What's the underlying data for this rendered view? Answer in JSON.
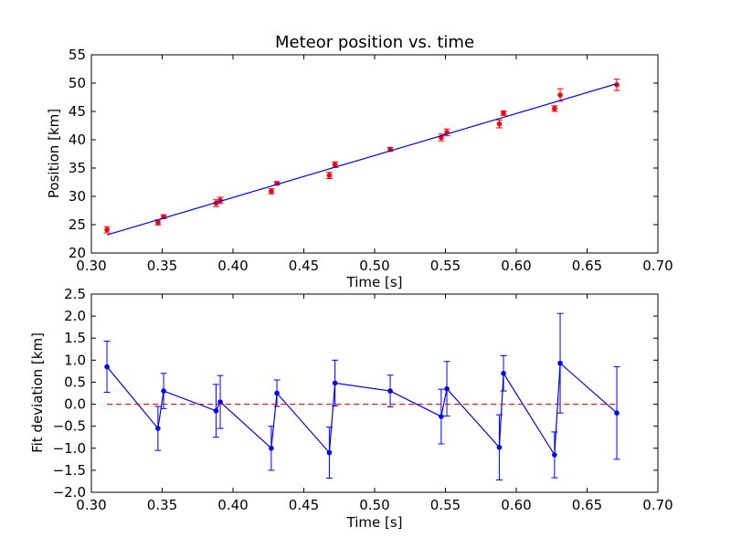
{
  "chart_data": [
    {
      "type": "scatter",
      "title": "Meteor position vs. time",
      "xlabel": "Time [s]",
      "ylabel": "Position [km]",
      "xlim": [
        0.3,
        0.7
      ],
      "ylim": [
        20,
        55
      ],
      "xticks": [
        "0.30",
        "0.35",
        "0.40",
        "0.45",
        "0.50",
        "0.55",
        "0.60",
        "0.65",
        "0.70"
      ],
      "yticks": [
        "20",
        "25",
        "30",
        "35",
        "40",
        "45",
        "50",
        "55"
      ],
      "grid": false,
      "series": [
        {
          "kind": "points_with_errorbars",
          "color": "#ff0000",
          "x": [
            0.311,
            0.347,
            0.351,
            0.388,
            0.391,
            0.427,
            0.431,
            0.468,
            0.472,
            0.511,
            0.547,
            0.551,
            0.588,
            0.591,
            0.627,
            0.631,
            0.671
          ],
          "y": [
            24.1,
            25.4,
            26.4,
            28.8,
            29.3,
            30.9,
            32.3,
            33.7,
            35.6,
            38.3,
            40.4,
            41.3,
            42.8,
            44.7,
            45.5,
            47.9,
            49.7
          ],
          "err": [
            0.55,
            0.45,
            0.35,
            0.6,
            0.55,
            0.45,
            0.3,
            0.55,
            0.5,
            0.35,
            0.6,
            0.6,
            0.7,
            0.4,
            0.5,
            1.1,
            1.0
          ]
        },
        {
          "kind": "fit_line",
          "color": "#0000ff",
          "x": [
            0.311,
            0.671
          ],
          "y": [
            23.2,
            49.9
          ]
        }
      ]
    },
    {
      "type": "line",
      "title": "",
      "xlabel": "Time [s]",
      "ylabel": "Fit deviation [km]",
      "xlim": [
        0.3,
        0.7
      ],
      "ylim": [
        -2.0,
        2.5
      ],
      "xticks": [
        "0.30",
        "0.35",
        "0.40",
        "0.45",
        "0.50",
        "0.55",
        "0.60",
        "0.65",
        "0.70"
      ],
      "yticks": [
        "−2.0",
        "−1.5",
        "−1.0",
        "−0.5",
        "0.0",
        "0.5",
        "1.0",
        "1.5",
        "2.0",
        "2.5"
      ],
      "grid": false,
      "series": [
        {
          "kind": "line_with_errorbars",
          "color": "#0000ff",
          "x": [
            0.311,
            0.347,
            0.351,
            0.388,
            0.391,
            0.427,
            0.431,
            0.468,
            0.472,
            0.511,
            0.547,
            0.551,
            0.588,
            0.591,
            0.627,
            0.631,
            0.671
          ],
          "y": [
            0.85,
            -0.55,
            0.3,
            -0.15,
            0.05,
            -1.0,
            0.25,
            -1.1,
            0.48,
            0.3,
            -0.28,
            0.35,
            -0.98,
            0.7,
            -1.15,
            0.93,
            -0.2
          ],
          "err": [
            0.58,
            0.5,
            0.4,
            0.6,
            0.6,
            0.5,
            0.3,
            0.58,
            0.52,
            0.36,
            0.62,
            0.62,
            0.74,
            0.4,
            0.52,
            1.13,
            1.05
          ]
        },
        {
          "kind": "zero_reference",
          "color": "#ff0000",
          "style": "dashed",
          "x": [
            0.311,
            0.671
          ],
          "y": [
            0,
            0
          ]
        }
      ]
    }
  ]
}
